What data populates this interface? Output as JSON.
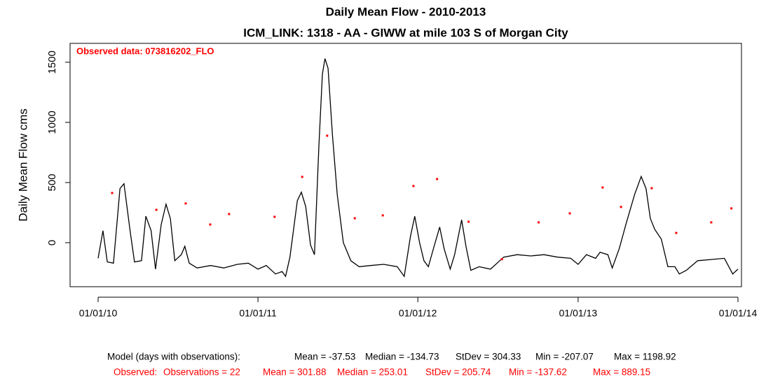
{
  "chart_data": {
    "type": "line",
    "title": "Daily Mean Flow - 2010-2013",
    "subtitle": "ICM_LINK: 1318 - AA - GIWW at mile 103 S of Morgan City",
    "y_label": "Daily Mean Flow cms",
    "annotation": "Observed data: 073816202_FLO",
    "xlim": [
      "2009-10-29",
      "2014-01-09"
    ],
    "xticks": [
      {
        "value": "2010-01-01",
        "label": "01/01/10"
      },
      {
        "value": "2011-01-01",
        "label": "01/01/11"
      },
      {
        "value": "2012-01-01",
        "label": "01/01/12"
      },
      {
        "value": "2013-01-01",
        "label": "01/01/13"
      },
      {
        "value": "2014-01-01",
        "label": "01/01/14"
      }
    ],
    "ylim": [
      -366,
      1657
    ],
    "yticks": [
      0,
      500,
      1000,
      1500
    ],
    "series": [
      {
        "name": "Model",
        "color": "#000000",
        "kind": "line",
        "x": [
          "2010-01-01",
          "2010-01-12",
          "2010-01-22",
          "2010-02-05",
          "2010-02-20",
          "2010-03-01",
          "2010-03-15",
          "2010-03-25",
          "2010-04-10",
          "2010-04-20",
          "2010-05-02",
          "2010-05-12",
          "2010-05-25",
          "2010-06-05",
          "2010-06-15",
          "2010-06-25",
          "2010-07-10",
          "2010-07-18",
          "2010-07-28",
          "2010-08-15",
          "2010-09-15",
          "2010-10-15",
          "2010-11-15",
          "2010-12-10",
          "2011-01-01",
          "2011-01-20",
          "2011-02-10",
          "2011-02-25",
          "2011-03-05",
          "2011-03-15",
          "2011-04-01",
          "2011-04-10",
          "2011-04-20",
          "2011-05-01",
          "2011-05-10",
          "2011-05-20",
          "2011-05-28",
          "2011-06-03",
          "2011-06-10",
          "2011-06-20",
          "2011-07-01",
          "2011-07-15",
          "2011-08-01",
          "2011-08-20",
          "2011-09-15",
          "2011-10-15",
          "2011-11-15",
          "2011-12-01",
          "2011-12-15",
          "2011-12-25",
          "2012-01-05",
          "2012-01-15",
          "2012-01-25",
          "2012-02-08",
          "2012-02-20",
          "2012-03-01",
          "2012-03-15",
          "2012-03-25",
          "2012-04-10",
          "2012-04-20",
          "2012-05-01",
          "2012-05-20",
          "2012-06-15",
          "2012-07-15",
          "2012-08-15",
          "2012-09-15",
          "2012-10-15",
          "2012-11-15",
          "2012-12-15",
          "2013-01-01",
          "2013-01-20",
          "2013-02-10",
          "2013-02-20",
          "2013-03-10",
          "2013-03-20",
          "2013-04-05",
          "2013-04-20",
          "2013-05-10",
          "2013-05-25",
          "2013-06-05",
          "2013-06-15",
          "2013-06-25",
          "2013-07-10",
          "2013-07-25",
          "2013-08-10",
          "2013-08-20",
          "2013-09-05",
          "2013-10-01",
          "2013-11-01",
          "2013-12-01",
          "2013-12-20",
          "2014-01-01"
        ],
        "values": [
          -130,
          100,
          -160,
          -170,
          450,
          490,
          100,
          -160,
          -150,
          220,
          100,
          -220,
          150,
          320,
          200,
          -150,
          -100,
          -30,
          -170,
          -210,
          -190,
          -210,
          -180,
          -170,
          -220,
          -190,
          -260,
          -240,
          -280,
          -120,
          350,
          420,
          300,
          -20,
          -100,
          800,
          1400,
          1530,
          1450,
          900,
          400,
          0,
          -150,
          -200,
          -190,
          -180,
          -200,
          -280,
          50,
          220,
          0,
          -150,
          -200,
          -20,
          130,
          -50,
          -220,
          -100,
          190,
          -30,
          -230,
          -200,
          -220,
          -120,
          -100,
          -110,
          -100,
          -120,
          -130,
          -180,
          -100,
          -130,
          -80,
          -100,
          -210,
          -50,
          150,
          400,
          550,
          450,
          200,
          110,
          30,
          -200,
          -200,
          -260,
          -230,
          -150,
          -140,
          -130,
          -260,
          -220
        ]
      },
      {
        "name": "Observed",
        "color": "#ff0000",
        "kind": "points",
        "x": [
          "2010-02-02",
          "2010-05-14",
          "2010-07-20",
          "2010-09-14",
          "2010-10-27",
          "2011-02-08",
          "2011-04-12",
          "2011-06-08",
          "2011-08-10",
          "2011-10-13",
          "2011-12-22",
          "2012-02-14",
          "2012-04-26",
          "2012-07-11",
          "2012-10-03",
          "2012-12-13",
          "2013-02-26",
          "2013-04-09",
          "2013-06-18",
          "2013-08-13",
          "2013-11-01",
          "2013-12-17"
        ],
        "values": [
          413,
          273,
          326,
          151,
          238,
          215,
          547,
          889.15,
          203,
          227,
          471,
          529,
          174,
          -137.62,
          169,
          244,
          459,
          297,
          453,
          81,
          169,
          285
        ]
      }
    ],
    "stats": [
      [
        "Model (days with observations):",
        "Mean = -37.53",
        "Median = -134.73",
        "StDev = 304.33",
        "Min = -207.07",
        "Max = 1198.92"
      ],
      [
        "Observed:",
        "Observations = 22",
        "Mean = 301.88",
        "Median = 253.01",
        "StDev = 205.74",
        "Min = -137.62",
        "Max = 889.15"
      ]
    ],
    "stats_colors": [
      "#000000",
      "#ff0000"
    ]
  }
}
